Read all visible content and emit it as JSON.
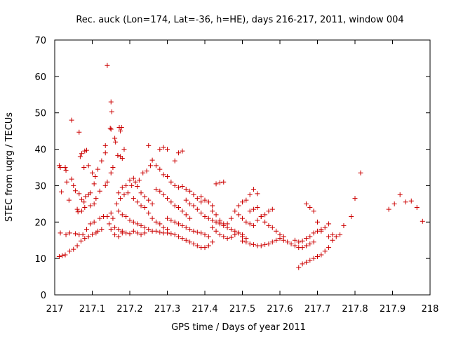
{
  "chart_data": {
    "type": "scatter",
    "title": "Rec. auck (Lon=174, Lat=-36, h=HE), days 216-217, 2011, window 004",
    "xlabel": "GPS time / Days of year 2011",
    "ylabel": "STEC from uqrg / TECUs",
    "xlim": [
      217,
      218
    ],
    "ylim": [
      0,
      70
    ],
    "x_ticks": [
      "217",
      "217.1",
      "217.2",
      "217.3",
      "217.4",
      "217.5",
      "217.6",
      "217.7",
      "217.8",
      "217.9",
      "218"
    ],
    "y_ticks": [
      "0",
      "10",
      "20",
      "30",
      "40",
      "50",
      "60",
      "70"
    ],
    "grid": false,
    "legend": "none",
    "marker": "plus",
    "color": "#cc0000",
    "points": [
      [
        217.012,
        35.5
      ],
      [
        217.015,
        35.0
      ],
      [
        217.018,
        28.3
      ],
      [
        217.028,
        35.0
      ],
      [
        217.03,
        34.2
      ],
      [
        217.032,
        31.0
      ],
      [
        217.038,
        26.0
      ],
      [
        217.045,
        31.8
      ],
      [
        217.05,
        30.0
      ],
      [
        217.055,
        28.6
      ],
      [
        217.062,
        22.8
      ],
      [
        217.065,
        27.8
      ],
      [
        217.072,
        26.2
      ],
      [
        217.078,
        25.5
      ],
      [
        217.082,
        27.0
      ],
      [
        217.09,
        27.5
      ],
      [
        217.095,
        28.0
      ],
      [
        217.105,
        30.5
      ],
      [
        217.115,
        34.5
      ],
      [
        217.125,
        36.8
      ],
      [
        217.045,
        48.0
      ],
      [
        217.068,
        38.0
      ],
      [
        217.072,
        38.8
      ],
      [
        217.08,
        39.5
      ],
      [
        217.085,
        39.7
      ],
      [
        217.065,
        44.7
      ],
      [
        217.078,
        35.0
      ],
      [
        217.09,
        35.5
      ],
      [
        217.1,
        33.5
      ],
      [
        217.108,
        32.5
      ],
      [
        217.14,
        63.0
      ],
      [
        217.15,
        53.0
      ],
      [
        217.152,
        50.3
      ],
      [
        217.148,
        45.8
      ],
      [
        217.15,
        45.5
      ],
      [
        217.135,
        41.0
      ],
      [
        217.135,
        39.0
      ],
      [
        217.16,
        43.0
      ],
      [
        217.162,
        42.0
      ],
      [
        217.172,
        46.0
      ],
      [
        217.178,
        46.0
      ],
      [
        217.175,
        45.0
      ],
      [
        217.168,
        38.3
      ],
      [
        217.175,
        38.0
      ],
      [
        217.18,
        37.5
      ],
      [
        217.185,
        40.0
      ],
      [
        217.012,
        10.5
      ],
      [
        217.02,
        10.8
      ],
      [
        217.028,
        11.0
      ],
      [
        217.04,
        12.0
      ],
      [
        217.05,
        12.5
      ],
      [
        217.06,
        13.5
      ],
      [
        217.07,
        14.8
      ],
      [
        217.08,
        15.5
      ],
      [
        217.09,
        16.0
      ],
      [
        217.1,
        16.6
      ],
      [
        217.11,
        17.0
      ],
      [
        217.115,
        17.5
      ],
      [
        217.125,
        18.0
      ],
      [
        217.015,
        17.0
      ],
      [
        217.03,
        16.5
      ],
      [
        217.04,
        17.0
      ],
      [
        217.055,
        16.8
      ],
      [
        217.065,
        16.5
      ],
      [
        217.075,
        16.5
      ],
      [
        217.085,
        18.0
      ],
      [
        217.095,
        19.5
      ],
      [
        217.105,
        20.0
      ],
      [
        217.12,
        21.0
      ],
      [
        217.13,
        21.5
      ],
      [
        217.14,
        21.5
      ],
      [
        217.15,
        22.5
      ],
      [
        217.155,
        21.0
      ],
      [
        217.06,
        23.5
      ],
      [
        217.072,
        23.0
      ],
      [
        217.08,
        24.0
      ],
      [
        217.095,
        24.5
      ],
      [
        217.105,
        25.0
      ],
      [
        217.11,
        26.5
      ],
      [
        217.12,
        28.5
      ],
      [
        217.135,
        30.0
      ],
      [
        217.14,
        31.0
      ],
      [
        217.15,
        33.5
      ],
      [
        217.155,
        35.0
      ],
      [
        217.145,
        19.5
      ],
      [
        217.15,
        18.0
      ],
      [
        217.16,
        18.5
      ],
      [
        217.17,
        18.0
      ],
      [
        217.18,
        17.5
      ],
      [
        217.19,
        17.0
      ],
      [
        217.2,
        16.8
      ],
      [
        217.16,
        16.5
      ],
      [
        217.17,
        16.0
      ],
      [
        217.18,
        17.0
      ],
      [
        217.21,
        17.5
      ],
      [
        217.22,
        17.0
      ],
      [
        217.23,
        16.5
      ],
      [
        217.24,
        17.0
      ],
      [
        217.165,
        25.0
      ],
      [
        217.175,
        26.5
      ],
      [
        217.185,
        27.5
      ],
      [
        217.195,
        28.0
      ],
      [
        217.205,
        30.0
      ],
      [
        217.215,
        31.0
      ],
      [
        217.225,
        31.5
      ],
      [
        217.235,
        33.5
      ],
      [
        217.245,
        34.0
      ],
      [
        217.255,
        35.5
      ],
      [
        217.17,
        28.0
      ],
      [
        217.18,
        29.5
      ],
      [
        217.19,
        30.0
      ],
      [
        217.2,
        31.5
      ],
      [
        217.21,
        32.0
      ],
      [
        217.22,
        29.8
      ],
      [
        217.23,
        28.0
      ],
      [
        217.24,
        27.0
      ],
      [
        217.25,
        26.0
      ],
      [
        217.26,
        25.0
      ],
      [
        217.17,
        23.0
      ],
      [
        217.18,
        22.0
      ],
      [
        217.19,
        21.5
      ],
      [
        217.2,
        20.5
      ],
      [
        217.21,
        20.0
      ],
      [
        217.22,
        19.5
      ],
      [
        217.23,
        19.0
      ],
      [
        217.24,
        18.5
      ],
      [
        217.25,
        18.0
      ],
      [
        217.26,
        17.5
      ],
      [
        217.21,
        26.5
      ],
      [
        217.22,
        25.5
      ],
      [
        217.23,
        24.5
      ],
      [
        217.24,
        24.0
      ],
      [
        217.25,
        22.5
      ],
      [
        217.26,
        21.0
      ],
      [
        217.27,
        20.0
      ],
      [
        217.28,
        19.5
      ],
      [
        217.29,
        18.5
      ],
      [
        217.3,
        18.0
      ],
      [
        217.25,
        41.0
      ],
      [
        217.28,
        40.0
      ],
      [
        217.29,
        40.5
      ],
      [
        217.3,
        40.0
      ],
      [
        217.32,
        36.8
      ],
      [
        217.33,
        39.0
      ],
      [
        217.34,
        39.5
      ],
      [
        217.26,
        37.0
      ],
      [
        217.27,
        35.5
      ],
      [
        217.28,
        34.5
      ],
      [
        217.29,
        33.0
      ],
      [
        217.3,
        32.5
      ],
      [
        217.31,
        31.0
      ],
      [
        217.32,
        30.0
      ],
      [
        217.33,
        29.5
      ],
      [
        217.34,
        29.8
      ],
      [
        217.35,
        29.0
      ],
      [
        217.36,
        28.5
      ],
      [
        217.37,
        27.5
      ],
      [
        217.38,
        26.5
      ],
      [
        217.39,
        25.5
      ],
      [
        217.27,
        29.0
      ],
      [
        217.28,
        28.5
      ],
      [
        217.29,
        27.5
      ],
      [
        217.3,
        26.5
      ],
      [
        217.31,
        25.5
      ],
      [
        217.32,
        24.5
      ],
      [
        217.33,
        24.0
      ],
      [
        217.34,
        23.0
      ],
      [
        217.35,
        22.0
      ],
      [
        217.36,
        21.0
      ],
      [
        217.27,
        17.5
      ],
      [
        217.28,
        17.2
      ],
      [
        217.29,
        17.0
      ],
      [
        217.3,
        17.0
      ],
      [
        217.31,
        16.8
      ],
      [
        217.32,
        16.5
      ],
      [
        217.33,
        16.0
      ],
      [
        217.34,
        15.5
      ],
      [
        217.35,
        15.0
      ],
      [
        217.36,
        14.5
      ],
      [
        217.37,
        14.0
      ],
      [
        217.38,
        13.5
      ],
      [
        217.39,
        13.0
      ],
      [
        217.4,
        13.0
      ],
      [
        217.41,
        13.5
      ],
      [
        217.42,
        14.5
      ],
      [
        217.3,
        21.0
      ],
      [
        217.31,
        20.5
      ],
      [
        217.32,
        20.0
      ],
      [
        217.33,
        19.5
      ],
      [
        217.34,
        19.0
      ],
      [
        217.35,
        18.5
      ],
      [
        217.36,
        18.0
      ],
      [
        217.37,
        17.5
      ],
      [
        217.38,
        17.2
      ],
      [
        217.39,
        17.0
      ],
      [
        217.4,
        16.5
      ],
      [
        217.41,
        16.0
      ],
      [
        217.35,
        26.0
      ],
      [
        217.36,
        25.0
      ],
      [
        217.37,
        24.5
      ],
      [
        217.38,
        23.5
      ],
      [
        217.39,
        22.5
      ],
      [
        217.4,
        21.5
      ],
      [
        217.41,
        21.0
      ],
      [
        217.42,
        20.5
      ],
      [
        217.43,
        20.0
      ],
      [
        217.44,
        19.5
      ],
      [
        217.39,
        27.0
      ],
      [
        217.4,
        26.0
      ],
      [
        217.41,
        25.5
      ],
      [
        217.42,
        24.5
      ],
      [
        217.43,
        30.5
      ],
      [
        217.44,
        30.8
      ],
      [
        217.45,
        31.0
      ],
      [
        217.42,
        23.0
      ],
      [
        217.43,
        22.0
      ],
      [
        217.44,
        20.5
      ],
      [
        217.45,
        19.5
      ],
      [
        217.46,
        18.5
      ],
      [
        217.47,
        18.0
      ],
      [
        217.48,
        17.5
      ],
      [
        217.49,
        17.0
      ],
      [
        217.5,
        16.5
      ],
      [
        217.42,
        18.5
      ],
      [
        217.43,
        17.5
      ],
      [
        217.44,
        16.5
      ],
      [
        217.45,
        16.0
      ],
      [
        217.46,
        15.5
      ],
      [
        217.47,
        15.8
      ],
      [
        217.48,
        16.5
      ],
      [
        217.49,
        17.0
      ],
      [
        217.5,
        16.0
      ],
      [
        217.51,
        15.5
      ],
      [
        217.44,
        20.0
      ],
      [
        217.45,
        19.0
      ],
      [
        217.46,
        19.5
      ],
      [
        217.47,
        21.0
      ],
      [
        217.48,
        23.0
      ],
      [
        217.49,
        24.5
      ],
      [
        217.5,
        25.5
      ],
      [
        217.51,
        26.0
      ],
      [
        217.52,
        27.5
      ],
      [
        217.53,
        29.0
      ],
      [
        217.54,
        27.8
      ],
      [
        217.49,
        22.0
      ],
      [
        217.5,
        21.0
      ],
      [
        217.51,
        20.0
      ],
      [
        217.52,
        19.5
      ],
      [
        217.53,
        19.0
      ],
      [
        217.54,
        20.5
      ],
      [
        217.55,
        21.5
      ],
      [
        217.56,
        22.0
      ],
      [
        217.57,
        23.0
      ],
      [
        217.58,
        23.5
      ],
      [
        217.5,
        14.8
      ],
      [
        217.51,
        14.5
      ],
      [
        217.52,
        14.0
      ],
      [
        217.53,
        13.8
      ],
      [
        217.54,
        13.5
      ],
      [
        217.55,
        13.5
      ],
      [
        217.56,
        13.8
      ],
      [
        217.57,
        14.0
      ],
      [
        217.58,
        14.5
      ],
      [
        217.59,
        15.0
      ],
      [
        217.52,
        23.0
      ],
      [
        217.53,
        23.5
      ],
      [
        217.54,
        24.0
      ],
      [
        217.55,
        21.5
      ],
      [
        217.56,
        20.0
      ],
      [
        217.57,
        19.0
      ],
      [
        217.58,
        18.5
      ],
      [
        217.59,
        17.5
      ],
      [
        217.6,
        16.5
      ],
      [
        217.61,
        16.0
      ],
      [
        217.6,
        15.5
      ],
      [
        217.61,
        15.0
      ],
      [
        217.62,
        14.5
      ],
      [
        217.63,
        14.0
      ],
      [
        217.64,
        13.5
      ],
      [
        217.65,
        13.0
      ],
      [
        217.66,
        13.0
      ],
      [
        217.67,
        13.5
      ],
      [
        217.68,
        14.0
      ],
      [
        217.69,
        14.5
      ],
      [
        217.64,
        15.0
      ],
      [
        217.65,
        14.5
      ],
      [
        217.66,
        14.8
      ],
      [
        217.67,
        15.5
      ],
      [
        217.68,
        16.0
      ],
      [
        217.69,
        17.0
      ],
      [
        217.7,
        17.5
      ],
      [
        217.71,
        18.0
      ],
      [
        217.72,
        18.5
      ],
      [
        217.73,
        19.5
      ],
      [
        217.65,
        7.5
      ],
      [
        217.66,
        8.5
      ],
      [
        217.67,
        9.0
      ],
      [
        217.68,
        9.5
      ],
      [
        217.69,
        10.0
      ],
      [
        217.7,
        10.5
      ],
      [
        217.71,
        11.0
      ],
      [
        217.72,
        12.0
      ],
      [
        217.73,
        13.0
      ],
      [
        217.74,
        15.0
      ],
      [
        217.67,
        25.0
      ],
      [
        217.68,
        24.0
      ],
      [
        217.69,
        23.0
      ],
      [
        217.7,
        20.0
      ],
      [
        217.71,
        17.5
      ],
      [
        217.73,
        16.0
      ],
      [
        217.74,
        16.5
      ],
      [
        217.75,
        16.0
      ],
      [
        217.76,
        16.5
      ],
      [
        217.77,
        19.0
      ],
      [
        217.79,
        21.5
      ],
      [
        217.8,
        26.5
      ],
      [
        217.815,
        33.5
      ],
      [
        217.89,
        23.5
      ],
      [
        217.905,
        25.0
      ],
      [
        217.92,
        27.5
      ],
      [
        217.935,
        25.5
      ],
      [
        217.95,
        25.8
      ],
      [
        217.965,
        24.0
      ],
      [
        217.98,
        20.2
      ]
    ]
  }
}
